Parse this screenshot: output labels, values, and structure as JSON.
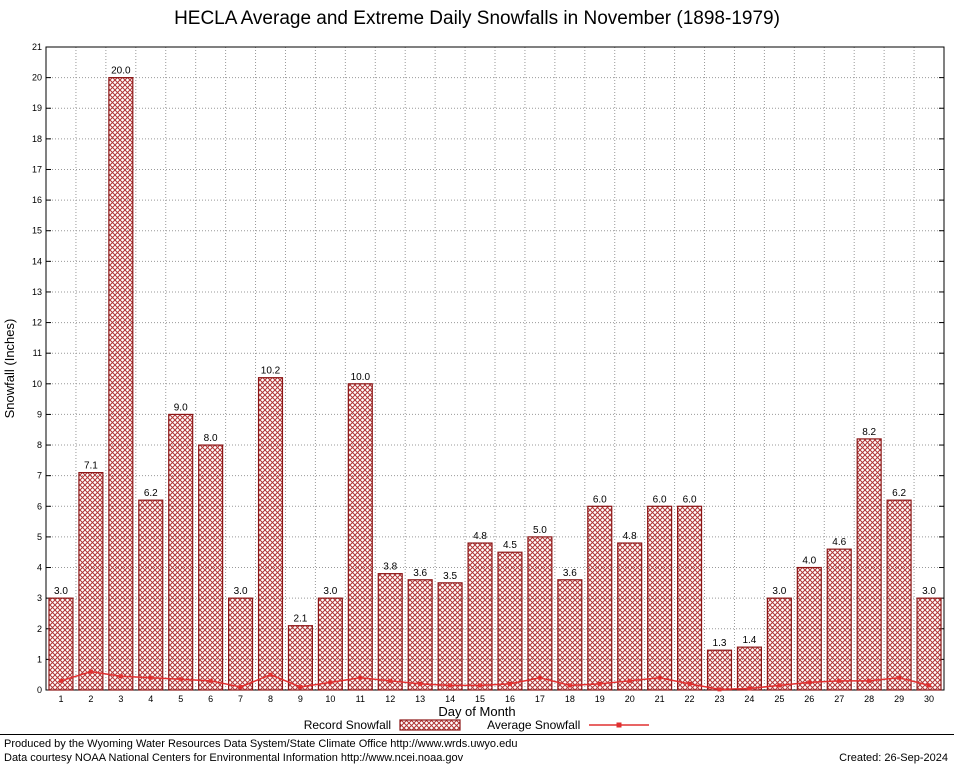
{
  "title": "HECLA Average and Extreme Daily Snowfalls in November (1898-1979)",
  "chart_data": {
    "type": "bar",
    "title": "HECLA Average and Extreme Daily Snowfalls in November (1898-1979)",
    "xlabel": "Day of Month",
    "ylabel": "Snowfall (Inches)",
    "ylim": [
      0,
      21
    ],
    "ytick_step": 1,
    "grid": true,
    "legend_position": "bottom",
    "categories": [
      1,
      2,
      3,
      4,
      5,
      6,
      7,
      8,
      9,
      10,
      11,
      12,
      13,
      14,
      15,
      16,
      17,
      18,
      19,
      20,
      21,
      22,
      23,
      24,
      25,
      26,
      27,
      28,
      29,
      30
    ],
    "series": [
      {
        "name": "Record Snowfall",
        "type": "bar",
        "values": [
          3.0,
          7.1,
          20.0,
          6.2,
          9.0,
          8.0,
          3.0,
          10.2,
          2.1,
          3.0,
          10.0,
          3.8,
          3.6,
          3.5,
          4.8,
          4.5,
          5.0,
          3.6,
          6.0,
          4.8,
          6.0,
          6.0,
          1.3,
          1.4,
          3.0,
          4.0,
          4.6,
          8.2,
          6.2,
          3.0
        ]
      },
      {
        "name": "Average Snowfall",
        "type": "line",
        "values": [
          0.3,
          0.6,
          0.45,
          0.4,
          0.35,
          0.3,
          0.1,
          0.5,
          0.1,
          0.25,
          0.4,
          0.3,
          0.2,
          0.15,
          0.15,
          0.2,
          0.4,
          0.15,
          0.2,
          0.3,
          0.4,
          0.2,
          0.02,
          0.05,
          0.15,
          0.25,
          0.3,
          0.3,
          0.4,
          0.15
        ]
      }
    ],
    "colors": {
      "bar_edge": "#8B1616",
      "bar_hatch": "#B03434",
      "avg_line": "#E03030",
      "grid": "#999999"
    }
  },
  "footer": {
    "line1": "Produced by the Wyoming Water Resources Data System/State Climate Office http://www.wrds.uwyo.edu",
    "line2": "Data courtesy NOAA National Centers for Environmental Information http://www.ncei.noaa.gov",
    "created": "Created: 26-Sep-2024"
  }
}
